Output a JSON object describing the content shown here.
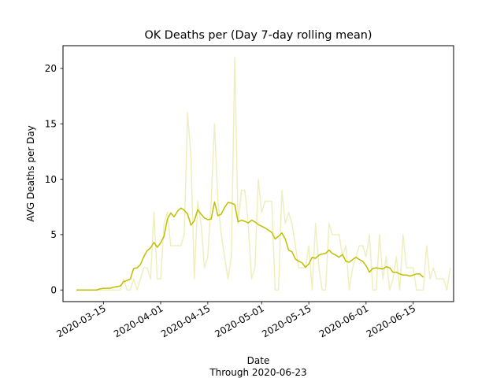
{
  "chart_data": {
    "type": "line",
    "title": "OK Deaths per (Day 7-day rolling mean)",
    "xlabel": "Date",
    "xlabel_sub": "Through 2020-06-23",
    "ylabel": "AVG Deaths per Day",
    "x_start": "2020-03-07",
    "xlim": [
      "2020-03-03",
      "2020-06-27"
    ],
    "ylim": [
      -1.05,
      22.05
    ],
    "x_ticks": [
      "2020-03-15",
      "2020-04-01",
      "2020-04-15",
      "2020-05-01",
      "2020-05-15",
      "2020-06-01",
      "2020-06-15"
    ],
    "y_ticks": [
      0,
      5,
      10,
      15,
      20
    ],
    "grid": false,
    "series": [
      {
        "name": "",
        "color": "#efefbe",
        "values": [
          0,
          0,
          0,
          0,
          0,
          0,
          0,
          0,
          0,
          0,
          0,
          0,
          0,
          0,
          1,
          0,
          0,
          1,
          0,
          1,
          2,
          2,
          1,
          7,
          1,
          1,
          6,
          7,
          4,
          4,
          4,
          4,
          5,
          16,
          12,
          1,
          8,
          6,
          2,
          3,
          8,
          15,
          8,
          5,
          3,
          1,
          3,
          21,
          6,
          9,
          9,
          6,
          1,
          2,
          10,
          7,
          8,
          8,
          8,
          0,
          0,
          9,
          6,
          7,
          6,
          4,
          2,
          2,
          2,
          4,
          0,
          6,
          2,
          0,
          0,
          6,
          5,
          5,
          5,
          3,
          4,
          0,
          2,
          3,
          4,
          4,
          3,
          5,
          0,
          0,
          5,
          1,
          3,
          0,
          1,
          3,
          0,
          5,
          2,
          2,
          2,
          0,
          0,
          0,
          4,
          1,
          2,
          1,
          1,
          1,
          0,
          2
        ]
      },
      {
        "name": "",
        "color": "#bfbf00",
        "values": [
          0,
          0,
          0,
          0,
          0,
          0,
          0,
          0.1,
          0.15,
          0.15,
          0.15,
          0.25,
          0.3,
          0.35,
          0.75,
          0.85,
          1,
          1.95,
          2,
          2.3,
          3,
          3.55,
          3.8,
          4.3,
          3.85,
          4.25,
          4.85,
          6.4,
          6.95,
          6.6,
          7.1,
          7.4,
          7.2,
          6.85,
          5.85,
          6.25,
          7.25,
          6.85,
          6.5,
          6.35,
          6.4,
          7.95,
          6.7,
          6.85,
          7.45,
          7.9,
          7.85,
          7.7,
          6.15,
          6.3,
          6.2,
          6.05,
          6.3,
          6.15,
          5.9,
          5.75,
          5.6,
          5.4,
          5.2,
          4.6,
          4.85,
          5.15,
          4.6,
          3.6,
          3.45,
          2.8,
          2.6,
          2.45,
          2.05,
          2.35,
          2.95,
          2.85,
          3.15,
          3.25,
          3.3,
          3.6,
          3.3,
          3.15,
          2.95,
          3.2,
          2.6,
          2.5,
          2.75,
          2.95,
          2.75,
          2.6,
          2.2,
          1.6,
          1.95,
          2,
          1.95,
          1.9,
          2.1,
          2,
          1.6,
          1.6,
          1.45,
          1.35,
          1.35,
          1.25,
          1.35,
          1.45,
          1.45,
          1.15
        ]
      }
    ]
  }
}
